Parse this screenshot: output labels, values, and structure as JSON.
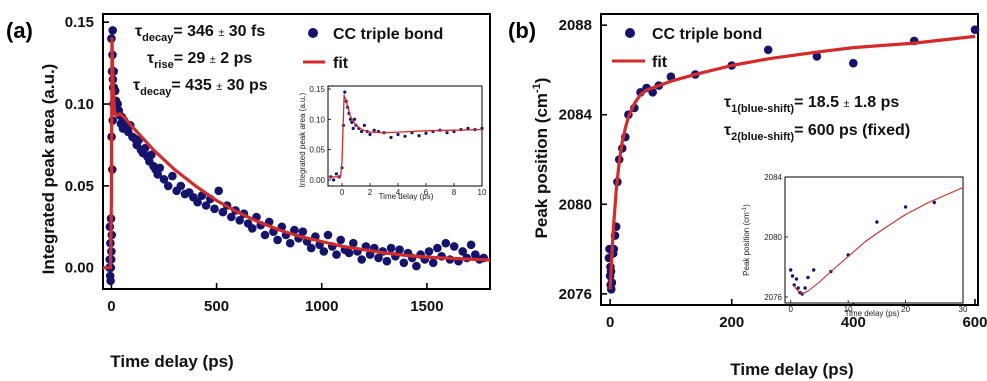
{
  "colors": {
    "points": "#14146e",
    "fit": "#d42a2a",
    "frame": "#000000"
  },
  "chart_data": [
    {
      "panel_label": "(a)",
      "type": "scatter",
      "xlabel": "Time delay (ps)",
      "ylabel": "Integrated peak area (a.u.)",
      "xlim": [
        -40,
        1800
      ],
      "ylim": [
        -0.013,
        0.155
      ],
      "xticks": [
        0,
        500,
        1000,
        1500
      ],
      "yticks": [
        0.0,
        0.05,
        0.1,
        0.15
      ],
      "ytick_labels": [
        "0.00",
        "0.05",
        "0.10",
        "0.15"
      ],
      "legend": {
        "placement": "top-right",
        "scatter_label": "CC triple bond",
        "fit_label": "fit"
      },
      "annotations": [
        {
          "sym": "τ",
          "sub": "decay",
          "val": "= 346 ",
          "pm": "±",
          "rest": " 30 fs"
        },
        {
          "sym": "τ",
          "sub": "rise",
          "val": "= 29 ",
          "pm": "±",
          "rest": " 2 ps"
        },
        {
          "sym": "τ",
          "sub": "decay",
          "val": "= 435 ",
          "pm": "±",
          "rest": " 30 ps"
        }
      ],
      "series": [
        {
          "kind": "points",
          "x": [
            -8,
            -5,
            -2,
            0,
            2,
            4,
            6,
            8,
            10,
            -6,
            -3,
            0,
            3,
            6,
            -7,
            -4,
            -1,
            1,
            5,
            7,
            9,
            11,
            -9,
            12,
            15,
            18,
            22,
            26,
            30,
            35,
            40,
            45,
            50,
            55,
            60,
            70,
            80,
            90,
            100,
            110,
            120,
            130,
            140,
            150,
            160,
            170,
            180,
            190,
            200,
            210,
            220,
            230,
            250,
            270,
            290,
            310,
            330,
            350,
            370,
            390,
            410,
            430,
            450,
            470,
            490,
            510,
            530,
            550,
            570,
            590,
            610,
            630,
            650,
            670,
            690,
            710,
            730,
            750,
            770,
            790,
            810,
            830,
            850,
            870,
            890,
            910,
            930,
            950,
            970,
            990,
            1010,
            1030,
            1050,
            1070,
            1090,
            1110,
            1130,
            1150,
            1170,
            1190,
            1210,
            1230,
            1250,
            1270,
            1290,
            1310,
            1330,
            1350,
            1370,
            1390,
            1410,
            1430,
            1450,
            1470,
            1490,
            1510,
            1530,
            1550,
            1570,
            1590,
            1610,
            1630,
            1650,
            1670,
            1690,
            1710,
            1730,
            1750,
            1770
          ],
          "y": [
            0.005,
            0.015,
            0.03,
            0.01,
            0.02,
            0.06,
            0.09,
            0.11,
            0.12,
            -0.005,
            0.0,
            0.14,
            0.12,
            0.145,
            0.025,
            -0.008,
            0.005,
            0.08,
            0.13,
            0.115,
            0.1,
            0.12,
            0.0,
            0.11,
            0.1,
            0.108,
            0.102,
            0.095,
            0.1,
            0.096,
            0.093,
            0.088,
            0.092,
            0.085,
            0.09,
            0.086,
            0.083,
            0.087,
            0.08,
            0.079,
            0.075,
            0.078,
            0.072,
            0.07,
            0.073,
            0.068,
            0.065,
            0.069,
            0.062,
            0.06,
            0.057,
            0.061,
            0.054,
            0.05,
            0.056,
            0.047,
            0.05,
            0.045,
            0.046,
            0.043,
            0.04,
            0.044,
            0.038,
            0.042,
            0.036,
            0.047,
            0.034,
            0.038,
            0.031,
            0.035,
            0.029,
            0.033,
            0.027,
            0.024,
            0.031,
            0.026,
            0.02,
            0.028,
            0.022,
            0.017,
            0.025,
            0.02,
            0.015,
            0.023,
            0.018,
            0.022,
            0.016,
            0.012,
            0.019,
            0.014,
            0.01,
            0.02,
            0.013,
            0.008,
            0.017,
            0.011,
            0.009,
            0.015,
            0.01,
            0.005,
            0.013,
            0.008,
            0.012,
            0.006,
            0.01,
            0.004,
            0.012,
            0.007,
            0.011,
            0.003,
            0.009,
            0.006,
            0.001,
            0.008,
            0.005,
            0.01,
            0.003,
            0.012,
            0.007,
            0.015,
            0.005,
            0.013,
            0.004,
            0.01,
            0.006,
            0.014,
            0.008,
            0.005,
            0.006
          ]
        },
        {
          "kind": "fit",
          "x": [
            -40,
            -5,
            0,
            3,
            8,
            15,
            25,
            40,
            60,
            100,
            150,
            200,
            300,
            400,
            500,
            600,
            700,
            800,
            900,
            1000,
            1100,
            1200,
            1300,
            1400,
            1500,
            1600,
            1700,
            1800
          ],
          "y": [
            0.0,
            0.0,
            0.04,
            0.14,
            0.11,
            0.095,
            0.093,
            0.094,
            0.092,
            0.086,
            0.079,
            0.072,
            0.06,
            0.05,
            0.041,
            0.034,
            0.028,
            0.023,
            0.019,
            0.016,
            0.013,
            0.011,
            0.009,
            0.0075,
            0.0065,
            0.0058,
            0.0052,
            0.0048
          ]
        }
      ],
      "inset": {
        "xlabel": "Time delay (ps)",
        "ylabel": "Integrated peak area (a.u.)",
        "xlim": [
          -1,
          10
        ],
        "ylim": [
          -0.01,
          0.155
        ],
        "xticks": [
          0,
          2,
          4,
          6,
          8,
          10
        ],
        "yticks": [
          0.0,
          0.05,
          0.1,
          0.15
        ],
        "ytick_labels": [
          "0.00",
          "0.05",
          "0.10",
          "0.15"
        ],
        "points": {
          "x": [
            -0.8,
            -0.6,
            -0.4,
            -0.2,
            0,
            0.1,
            0.2,
            0.3,
            0.4,
            0.5,
            0.6,
            0.7,
            0.8,
            0.9,
            1.0,
            1.2,
            1.4,
            1.6,
            1.8,
            2.0,
            2.3,
            2.6,
            3.0,
            3.5,
            4.0,
            4.5,
            5.0,
            5.5,
            6.0,
            6.5,
            7.0,
            7.5,
            8.0,
            8.5,
            9.0,
            9.5,
            10.0
          ],
          "y": [
            0.005,
            0.0,
            0.01,
            0.005,
            0.02,
            0.09,
            0.145,
            0.13,
            0.12,
            0.11,
            0.1,
            0.095,
            0.085,
            0.1,
            0.09,
            0.085,
            0.08,
            0.09,
            0.08,
            0.075,
            0.082,
            0.08,
            0.078,
            0.07,
            0.075,
            0.072,
            0.078,
            0.073,
            0.077,
            0.08,
            0.082,
            0.078,
            0.08,
            0.083,
            0.085,
            0.083,
            0.085
          ]
        },
        "fit": {
          "x": [
            -1,
            -0.1,
            0,
            0.15,
            0.3,
            0.6,
            1,
            1.5,
            2,
            3,
            4,
            6,
            8,
            10
          ],
          "y": [
            0.005,
            0.005,
            0.03,
            0.14,
            0.13,
            0.105,
            0.09,
            0.082,
            0.079,
            0.078,
            0.079,
            0.081,
            0.082,
            0.083
          ]
        }
      }
    },
    {
      "panel_label": "(b)",
      "type": "scatter",
      "xlabel": "Time delay (ps)",
      "ylabel": "Peak position (cm",
      "ylabel_sup": "-1",
      "ylabel_end": ")",
      "xlim": [
        -15,
        605
      ],
      "ylim": [
        2075.5,
        2088.5
      ],
      "xticks": [
        0,
        200,
        400,
        600
      ],
      "yticks": [
        2076,
        2080,
        2084,
        2088
      ],
      "legend": {
        "placement": "top-left",
        "scatter_label": "CC triple bond",
        "fit_label": "fit"
      },
      "annotations": [
        {
          "sym": "τ",
          "sub": "1(blue-shift)",
          "val": "= 18.5 ",
          "pm": "±",
          "rest": " 1.8 ps"
        },
        {
          "sym": "τ",
          "sub": "2(blue-shift)",
          "val": "= 600 ps (fixed)",
          "pm": "",
          "rest": ""
        }
      ],
      "series": [
        {
          "kind": "points",
          "x": [
            -2,
            -1,
            0,
            0.5,
            1,
            1.5,
            2,
            3,
            4,
            5,
            6,
            8,
            10,
            12,
            15,
            20,
            25,
            30,
            40,
            50,
            60,
            70,
            80,
            100,
            140,
            200,
            260,
            340,
            400,
            500,
            600
          ],
          "y": [
            2077.6,
            2078.0,
            2076.8,
            2077.2,
            2076.4,
            2077.0,
            2076.2,
            2076.5,
            2077.9,
            2077.8,
            2078.0,
            2078.6,
            2079.0,
            2081.0,
            2082.0,
            2082.5,
            2083.0,
            2084.0,
            2084.3,
            2085.0,
            2085.2,
            2085.0,
            2085.3,
            2085.7,
            2085.8,
            2086.2,
            2086.9,
            2086.6,
            2086.3,
            2087.3,
            2087.8
          ]
        },
        {
          "kind": "fit",
          "x": [
            0,
            5,
            10,
            15,
            20,
            25,
            30,
            40,
            50,
            60,
            70,
            80,
            100,
            140,
            200,
            260,
            340,
            400,
            500,
            600
          ],
          "y": [
            2076.2,
            2078.8,
            2080.6,
            2081.9,
            2082.8,
            2083.4,
            2083.9,
            2084.5,
            2084.9,
            2085.1,
            2085.2,
            2085.3,
            2085.5,
            2085.8,
            2086.2,
            2086.5,
            2086.8,
            2087.0,
            2087.2,
            2087.5
          ]
        }
      ],
      "inset": {
        "xlabel": "Time delay (ps)",
        "ylabel": "Peak position (cm",
        "ylabel_sup": "-1",
        "ylabel_end": ")",
        "xlim": [
          -1,
          30
        ],
        "ylim": [
          2075.6,
          2084
        ],
        "xticks": [
          0,
          10,
          20,
          30
        ],
        "yticks": [
          2076,
          2080,
          2084
        ],
        "points": {
          "x": [
            0,
            0.3,
            0.6,
            1,
            1.3,
            1.6,
            2,
            2.5,
            3,
            4,
            7,
            10,
            15,
            20,
            25
          ],
          "y": [
            2077.8,
            2077.4,
            2076.8,
            2077.2,
            2076.6,
            2076.3,
            2076.2,
            2076.6,
            2077.3,
            2077.8,
            2077.7,
            2078.8,
            2081.0,
            2082.0,
            2082.3
          ]
        },
        "fit": {
          "x": [
            0.5,
            1,
            2,
            3,
            5,
            7,
            10,
            13,
            16,
            20,
            24,
            27,
            30
          ],
          "y": [
            2076.8,
            2076.5,
            2076.2,
            2076.4,
            2077.0,
            2077.7,
            2078.7,
            2079.7,
            2080.5,
            2081.5,
            2082.3,
            2082.8,
            2083.3
          ]
        }
      }
    }
  ]
}
